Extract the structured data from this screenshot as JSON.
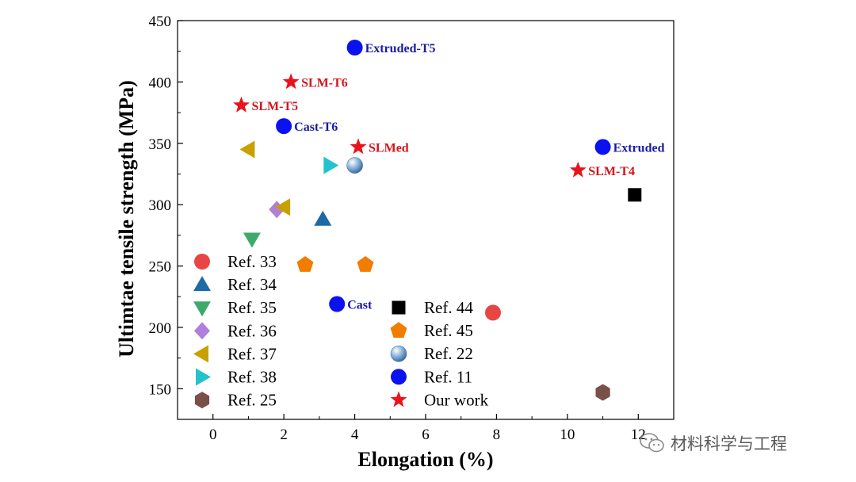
{
  "chart_data": {
    "type": "scatter",
    "xlabel": "Elongation (%)",
    "ylabel": "Ultimtae tensile  strength (MPa)",
    "xlim": [
      -1,
      13
    ],
    "ylim": [
      125,
      450
    ],
    "xticks": [
      "0",
      "2",
      "4",
      "6",
      "8",
      "10",
      "12"
    ],
    "yticks": [
      "150",
      "200",
      "250",
      "300",
      "350",
      "400",
      "450"
    ],
    "legend": "bottom-left, two columns",
    "series": [
      {
        "name": "Ref. 33",
        "marker": "circle",
        "color": "#e84545",
        "points": [
          {
            "x": 7.9,
            "y": 212
          }
        ]
      },
      {
        "name": "Ref. 34",
        "marker": "triangle-up",
        "color": "#1f6aa5",
        "points": [
          {
            "x": 3.1,
            "y": 288
          }
        ]
      },
      {
        "name": "Ref. 35",
        "marker": "triangle-down",
        "color": "#3daa6a",
        "points": [
          {
            "x": 1.1,
            "y": 272
          }
        ]
      },
      {
        "name": "Ref. 36",
        "marker": "diamond",
        "color": "#b07fd9",
        "points": [
          {
            "x": 1.8,
            "y": 296
          }
        ]
      },
      {
        "name": "Ref. 37",
        "marker": "triangle-left",
        "color": "#c8a000",
        "points": [
          {
            "x": 1.0,
            "y": 345
          },
          {
            "x": 2.0,
            "y": 298
          }
        ]
      },
      {
        "name": "Ref. 38",
        "marker": "triangle-right",
        "color": "#22c3cc",
        "points": [
          {
            "x": 3.3,
            "y": 332
          }
        ]
      },
      {
        "name": "Ref. 25",
        "marker": "hexagon",
        "color": "#7a4f47",
        "points": [
          {
            "x": 11.0,
            "y": 147
          }
        ]
      },
      {
        "name": "Ref. 44",
        "marker": "square",
        "color": "#000000",
        "points": [
          {
            "x": 11.9,
            "y": 308
          }
        ]
      },
      {
        "name": "Ref. 45",
        "marker": "pentagon",
        "color": "#f27c00",
        "points": [
          {
            "x": 2.6,
            "y": 251
          },
          {
            "x": 4.3,
            "y": 251
          }
        ]
      },
      {
        "name": "Ref. 22",
        "marker": "sphere",
        "color": "#6f9fd1",
        "points": [
          {
            "x": 4.0,
            "y": 332
          }
        ]
      },
      {
        "name": "Ref. 11",
        "marker": "circle",
        "color": "#0a12f0",
        "labelColor": "#1a1aa6",
        "points": [
          {
            "x": 4.0,
            "y": 428,
            "label": "Extruded-T5"
          },
          {
            "x": 2.0,
            "y": 364,
            "label": "Cast-T6"
          },
          {
            "x": 11.0,
            "y": 347,
            "label": "Extruded"
          },
          {
            "x": 3.5,
            "y": 219,
            "label": "Cast"
          }
        ]
      },
      {
        "name": "Our work",
        "marker": "star",
        "color": "#e8141b",
        "labelColor": "#d4141b",
        "points": [
          {
            "x": 2.2,
            "y": 400,
            "label": "SLM-T6"
          },
          {
            "x": 0.8,
            "y": 381,
            "label": "SLM-T5"
          },
          {
            "x": 4.1,
            "y": 347,
            "label": "SLMed"
          },
          {
            "x": 10.3,
            "y": 328,
            "label": "SLM-T4"
          }
        ]
      }
    ]
  },
  "watermark": {
    "text": "材料科学与工程",
    "icon": "wechat-icon"
  }
}
